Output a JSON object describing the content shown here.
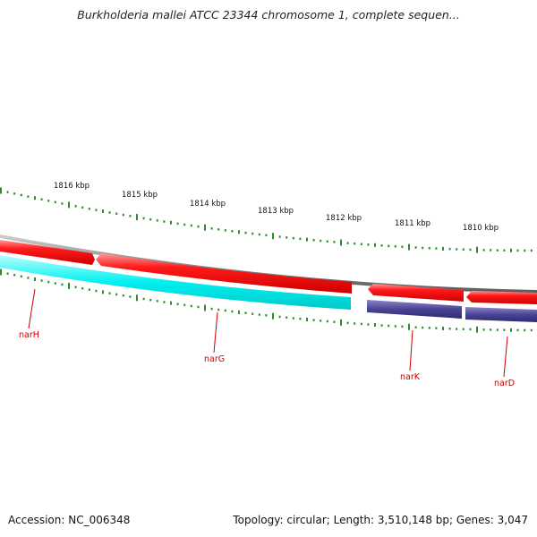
{
  "title": "Burkholderia mallei ATCC 23344 chromosome 1, complete sequen...",
  "footer": {
    "accession": "Accession: NC_006348",
    "summary": "Topology: circular; Length: 3,510,148 bp; Genes: 3,047"
  },
  "colors": {
    "ruler_ticks": "#2e8b2e",
    "backbone": "#8c8c8c",
    "forward_genes": "#ee0000",
    "reverse_genes_cyan": "#00e5e5",
    "reverse_genes_purple": "#4a4496",
    "gene_labels": "#cc0000"
  },
  "ruler": {
    "labels": [
      "1816 kbp",
      "1815 kbp",
      "1814 kbp",
      "1813 kbp",
      "1812 kbp",
      "1811 kbp",
      "1810 kbp"
    ]
  },
  "genes": [
    {
      "name": "narH",
      "strand": "reverse",
      "color": "cyan"
    },
    {
      "name": "narG",
      "strand": "reverse",
      "color": "cyan"
    },
    {
      "name": "narK",
      "strand": "reverse",
      "color": "purple"
    },
    {
      "name": "narD",
      "strand": "reverse",
      "color": "purple"
    }
  ]
}
